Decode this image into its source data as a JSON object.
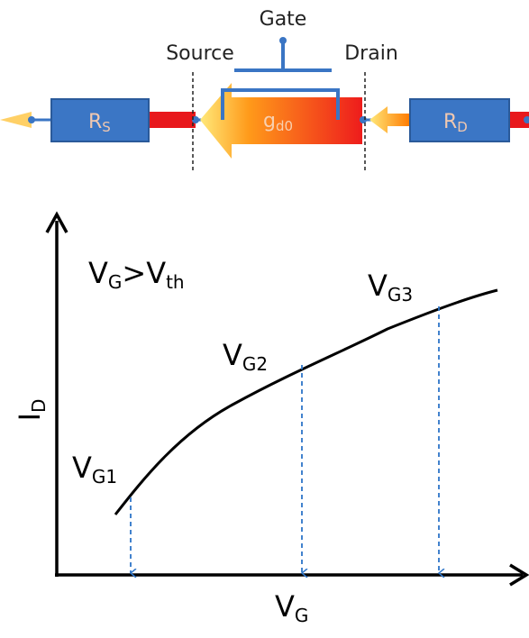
{
  "circuit": {
    "gate": "Gate",
    "source": "Source",
    "drain": "Drain",
    "rs": {
      "main": "R",
      "sub": "S"
    },
    "gd0": {
      "main": "g",
      "sub": "d0"
    },
    "rd": {
      "main": "R",
      "sub": "D"
    }
  },
  "plot": {
    "condition": {
      "left": "V",
      "left_sub": "G",
      "op": ">",
      "right": "V",
      "right_sub": "th"
    },
    "y_label": {
      "main": "I",
      "sub": "D"
    },
    "x_label": {
      "main": "V",
      "sub": "G"
    },
    "points": [
      {
        "main": "V",
        "sub": "G1"
      },
      {
        "main": "V",
        "sub": "G2"
      },
      {
        "main": "V",
        "sub": "G3"
      }
    ]
  }
}
